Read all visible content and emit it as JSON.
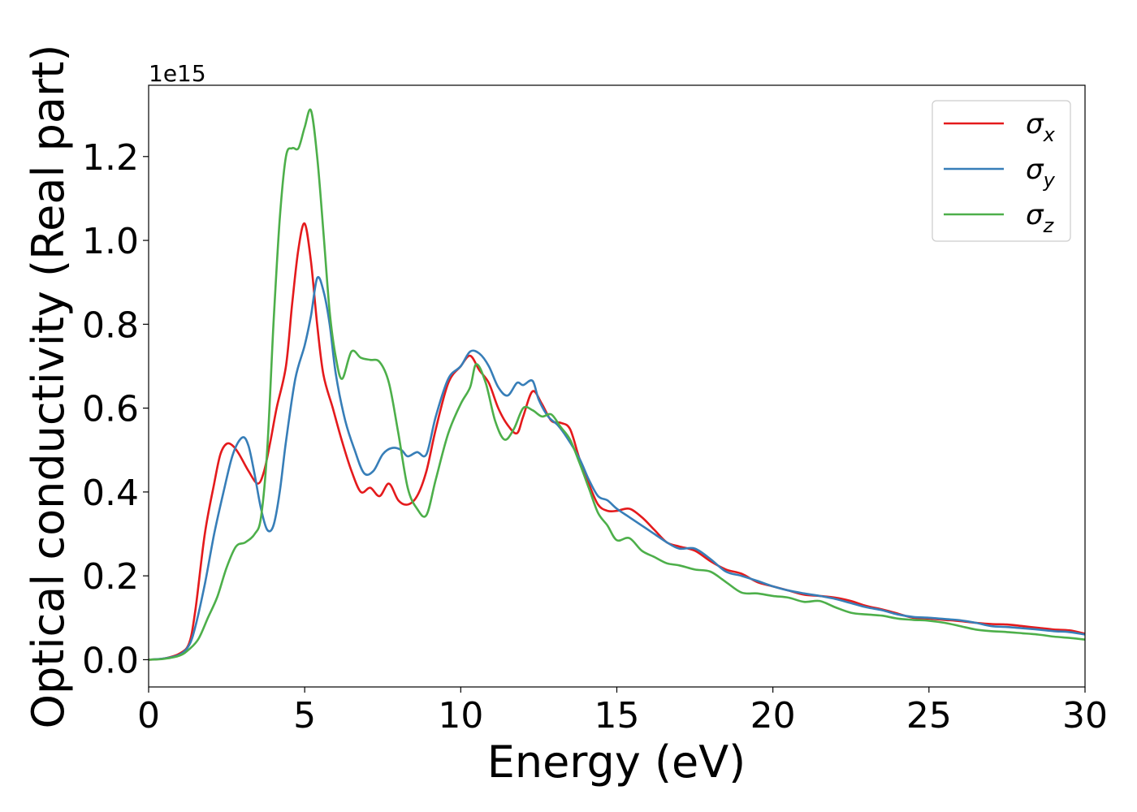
{
  "chart_data": {
    "type": "line",
    "xlabel": "Energy (eV)",
    "ylabel": "Optical conductivity (Real part)",
    "y_offset_label": "1e15",
    "xlim": [
      0,
      30
    ],
    "ylim": [
      -0.065,
      1.37
    ],
    "x_ticks": [
      0,
      5,
      10,
      15,
      20,
      25,
      30
    ],
    "x_tick_labels": [
      "0",
      "5",
      "10",
      "15",
      "20",
      "25",
      "30"
    ],
    "y_ticks": [
      0.0,
      0.2,
      0.4,
      0.6,
      0.8,
      1.0,
      1.2
    ],
    "y_tick_labels": [
      "0.0",
      "0.2",
      "0.4",
      "0.6",
      "0.8",
      "1.0",
      "1.2"
    ],
    "grid": false,
    "legend_position": "top-right",
    "series": [
      {
        "name": "σx",
        "legend_base": "σ",
        "legend_sub": "x",
        "color": "#e41a1c",
        "points": [
          [
            0,
            0
          ],
          [
            0.5,
            0.003
          ],
          [
            1.0,
            0.015
          ],
          [
            1.3,
            0.04
          ],
          [
            1.5,
            0.12
          ],
          [
            1.8,
            0.3
          ],
          [
            2.1,
            0.42
          ],
          [
            2.3,
            0.49
          ],
          [
            2.5,
            0.515
          ],
          [
            2.7,
            0.51
          ],
          [
            2.9,
            0.49
          ],
          [
            3.2,
            0.45
          ],
          [
            3.5,
            0.42
          ],
          [
            3.7,
            0.45
          ],
          [
            3.9,
            0.52
          ],
          [
            4.1,
            0.6
          ],
          [
            4.4,
            0.7
          ],
          [
            4.6,
            0.85
          ],
          [
            4.8,
            0.98
          ],
          [
            5.0,
            1.04
          ],
          [
            5.2,
            0.95
          ],
          [
            5.4,
            0.8
          ],
          [
            5.6,
            0.68
          ],
          [
            5.9,
            0.6
          ],
          [
            6.2,
            0.52
          ],
          [
            6.5,
            0.45
          ],
          [
            6.8,
            0.4
          ],
          [
            7.1,
            0.41
          ],
          [
            7.4,
            0.39
          ],
          [
            7.7,
            0.42
          ],
          [
            8.0,
            0.38
          ],
          [
            8.3,
            0.37
          ],
          [
            8.6,
            0.39
          ],
          [
            8.9,
            0.45
          ],
          [
            9.2,
            0.55
          ],
          [
            9.6,
            0.66
          ],
          [
            10.0,
            0.7
          ],
          [
            10.3,
            0.725
          ],
          [
            10.6,
            0.69
          ],
          [
            10.9,
            0.66
          ],
          [
            11.2,
            0.6
          ],
          [
            11.5,
            0.56
          ],
          [
            11.8,
            0.54
          ],
          [
            12.0,
            0.58
          ],
          [
            12.3,
            0.64
          ],
          [
            12.6,
            0.61
          ],
          [
            12.9,
            0.57
          ],
          [
            13.2,
            0.565
          ],
          [
            13.5,
            0.55
          ],
          [
            13.8,
            0.48
          ],
          [
            14.1,
            0.42
          ],
          [
            14.4,
            0.37
          ],
          [
            14.7,
            0.355
          ],
          [
            15.0,
            0.355
          ],
          [
            15.4,
            0.36
          ],
          [
            15.8,
            0.34
          ],
          [
            16.2,
            0.31
          ],
          [
            16.6,
            0.28
          ],
          [
            17.0,
            0.27
          ],
          [
            17.5,
            0.26
          ],
          [
            18.0,
            0.235
          ],
          [
            18.5,
            0.215
          ],
          [
            19.0,
            0.205
          ],
          [
            19.5,
            0.185
          ],
          [
            20.0,
            0.175
          ],
          [
            20.5,
            0.165
          ],
          [
            21.0,
            0.155
          ],
          [
            21.5,
            0.152
          ],
          [
            22.0,
            0.148
          ],
          [
            22.5,
            0.14
          ],
          [
            23.0,
            0.128
          ],
          [
            23.5,
            0.12
          ],
          [
            24.0,
            0.11
          ],
          [
            24.5,
            0.1
          ],
          [
            25.0,
            0.098
          ],
          [
            25.5,
            0.095
          ],
          [
            26.0,
            0.092
          ],
          [
            26.5,
            0.088
          ],
          [
            27.0,
            0.085
          ],
          [
            27.5,
            0.084
          ],
          [
            28.0,
            0.08
          ],
          [
            28.5,
            0.076
          ],
          [
            29.0,
            0.072
          ],
          [
            29.5,
            0.07
          ],
          [
            30.0,
            0.062
          ]
        ]
      },
      {
        "name": "σy",
        "legend_base": "σ",
        "legend_sub": "y",
        "color": "#377eb8",
        "points": [
          [
            0,
            0
          ],
          [
            0.5,
            0.003
          ],
          [
            1.0,
            0.012
          ],
          [
            1.3,
            0.035
          ],
          [
            1.5,
            0.08
          ],
          [
            1.8,
            0.18
          ],
          [
            2.1,
            0.3
          ],
          [
            2.4,
            0.4
          ],
          [
            2.7,
            0.49
          ],
          [
            3.0,
            0.53
          ],
          [
            3.2,
            0.51
          ],
          [
            3.4,
            0.44
          ],
          [
            3.6,
            0.36
          ],
          [
            3.8,
            0.31
          ],
          [
            4.0,
            0.32
          ],
          [
            4.2,
            0.4
          ],
          [
            4.4,
            0.52
          ],
          [
            4.7,
            0.67
          ],
          [
            5.0,
            0.75
          ],
          [
            5.2,
            0.82
          ],
          [
            5.4,
            0.91
          ],
          [
            5.6,
            0.88
          ],
          [
            5.8,
            0.8
          ],
          [
            6.0,
            0.68
          ],
          [
            6.3,
            0.57
          ],
          [
            6.6,
            0.5
          ],
          [
            6.9,
            0.445
          ],
          [
            7.2,
            0.45
          ],
          [
            7.5,
            0.49
          ],
          [
            7.8,
            0.505
          ],
          [
            8.1,
            0.5
          ],
          [
            8.3,
            0.485
          ],
          [
            8.6,
            0.495
          ],
          [
            8.9,
            0.49
          ],
          [
            9.2,
            0.58
          ],
          [
            9.6,
            0.67
          ],
          [
            10.0,
            0.7
          ],
          [
            10.3,
            0.735
          ],
          [
            10.6,
            0.73
          ],
          [
            10.9,
            0.7
          ],
          [
            11.2,
            0.65
          ],
          [
            11.5,
            0.63
          ],
          [
            11.8,
            0.66
          ],
          [
            12.0,
            0.655
          ],
          [
            12.3,
            0.665
          ],
          [
            12.5,
            0.62
          ],
          [
            12.8,
            0.58
          ],
          [
            13.1,
            0.56
          ],
          [
            13.4,
            0.53
          ],
          [
            13.8,
            0.48
          ],
          [
            14.1,
            0.43
          ],
          [
            14.4,
            0.39
          ],
          [
            14.7,
            0.38
          ],
          [
            15.0,
            0.36
          ],
          [
            15.4,
            0.34
          ],
          [
            15.8,
            0.32
          ],
          [
            16.2,
            0.3
          ],
          [
            16.6,
            0.28
          ],
          [
            17.0,
            0.265
          ],
          [
            17.5,
            0.265
          ],
          [
            18.0,
            0.24
          ],
          [
            18.5,
            0.21
          ],
          [
            19.0,
            0.2
          ],
          [
            19.5,
            0.188
          ],
          [
            20.0,
            0.175
          ],
          [
            20.5,
            0.165
          ],
          [
            21.0,
            0.158
          ],
          [
            21.5,
            0.152
          ],
          [
            22.0,
            0.145
          ],
          [
            22.5,
            0.135
          ],
          [
            23.0,
            0.125
          ],
          [
            23.5,
            0.118
          ],
          [
            24.0,
            0.108
          ],
          [
            24.5,
            0.102
          ],
          [
            25.0,
            0.1
          ],
          [
            25.5,
            0.097
          ],
          [
            26.0,
            0.094
          ],
          [
            26.5,
            0.088
          ],
          [
            27.0,
            0.08
          ],
          [
            27.5,
            0.078
          ],
          [
            28.0,
            0.075
          ],
          [
            28.5,
            0.072
          ],
          [
            29.0,
            0.068
          ],
          [
            29.5,
            0.066
          ],
          [
            30.0,
            0.06
          ]
        ]
      },
      {
        "name": "σz",
        "legend_base": "σ",
        "legend_sub": "z",
        "color": "#4daf4a",
        "points": [
          [
            0,
            0
          ],
          [
            0.5,
            0.002
          ],
          [
            1.0,
            0.01
          ],
          [
            1.3,
            0.025
          ],
          [
            1.6,
            0.05
          ],
          [
            1.9,
            0.1
          ],
          [
            2.2,
            0.15
          ],
          [
            2.5,
            0.22
          ],
          [
            2.8,
            0.27
          ],
          [
            3.1,
            0.28
          ],
          [
            3.4,
            0.3
          ],
          [
            3.6,
            0.34
          ],
          [
            3.8,
            0.5
          ],
          [
            4.0,
            0.8
          ],
          [
            4.2,
            1.05
          ],
          [
            4.4,
            1.2
          ],
          [
            4.6,
            1.22
          ],
          [
            4.8,
            1.22
          ],
          [
            5.0,
            1.27
          ],
          [
            5.2,
            1.31
          ],
          [
            5.4,
            1.2
          ],
          [
            5.6,
            1.02
          ],
          [
            5.8,
            0.83
          ],
          [
            6.0,
            0.72
          ],
          [
            6.2,
            0.67
          ],
          [
            6.5,
            0.735
          ],
          [
            6.8,
            0.72
          ],
          [
            7.1,
            0.715
          ],
          [
            7.4,
            0.71
          ],
          [
            7.7,
            0.66
          ],
          [
            8.0,
            0.54
          ],
          [
            8.3,
            0.41
          ],
          [
            8.6,
            0.36
          ],
          [
            8.9,
            0.345
          ],
          [
            9.2,
            0.43
          ],
          [
            9.6,
            0.54
          ],
          [
            10.0,
            0.61
          ],
          [
            10.3,
            0.65
          ],
          [
            10.5,
            0.705
          ],
          [
            10.8,
            0.66
          ],
          [
            11.1,
            0.57
          ],
          [
            11.4,
            0.525
          ],
          [
            11.7,
            0.55
          ],
          [
            12.0,
            0.6
          ],
          [
            12.3,
            0.595
          ],
          [
            12.6,
            0.58
          ],
          [
            12.9,
            0.585
          ],
          [
            13.2,
            0.555
          ],
          [
            13.5,
            0.525
          ],
          [
            13.8,
            0.47
          ],
          [
            14.1,
            0.41
          ],
          [
            14.4,
            0.35
          ],
          [
            14.7,
            0.32
          ],
          [
            15.0,
            0.285
          ],
          [
            15.4,
            0.29
          ],
          [
            15.8,
            0.26
          ],
          [
            16.2,
            0.245
          ],
          [
            16.6,
            0.23
          ],
          [
            17.0,
            0.225
          ],
          [
            17.5,
            0.215
          ],
          [
            18.0,
            0.21
          ],
          [
            18.5,
            0.185
          ],
          [
            19.0,
            0.16
          ],
          [
            19.5,
            0.158
          ],
          [
            20.0,
            0.152
          ],
          [
            20.5,
            0.148
          ],
          [
            21.0,
            0.138
          ],
          [
            21.5,
            0.14
          ],
          [
            22.0,
            0.125
          ],
          [
            22.5,
            0.112
          ],
          [
            23.0,
            0.108
          ],
          [
            23.5,
            0.105
          ],
          [
            24.0,
            0.098
          ],
          [
            24.5,
            0.095
          ],
          [
            25.0,
            0.093
          ],
          [
            25.5,
            0.088
          ],
          [
            26.0,
            0.08
          ],
          [
            26.5,
            0.072
          ],
          [
            27.0,
            0.068
          ],
          [
            27.5,
            0.066
          ],
          [
            28.0,
            0.063
          ],
          [
            28.5,
            0.06
          ],
          [
            29.0,
            0.055
          ],
          [
            29.5,
            0.052
          ],
          [
            30.0,
            0.048
          ]
        ]
      }
    ]
  }
}
